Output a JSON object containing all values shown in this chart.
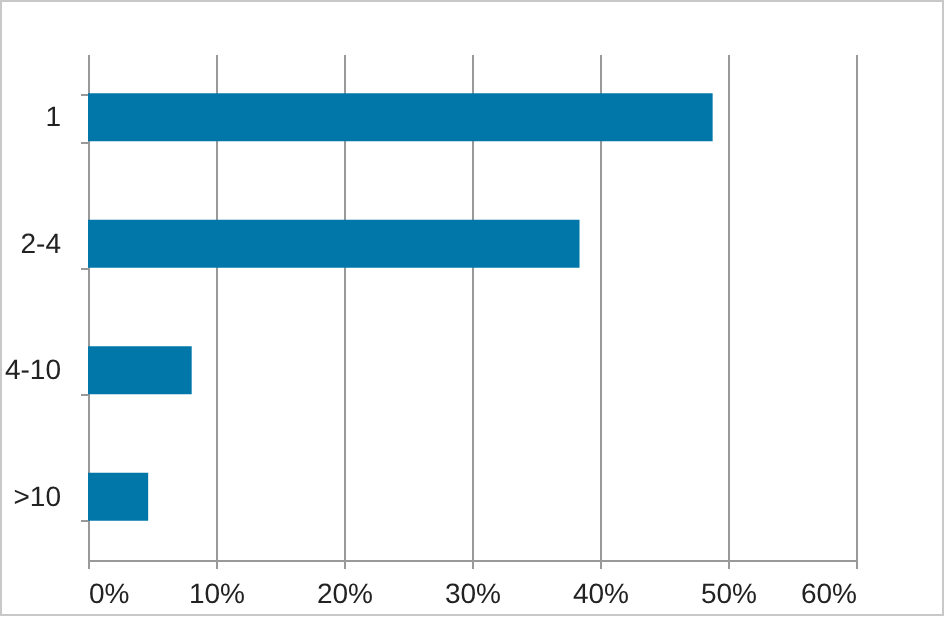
{
  "chart_data": {
    "type": "bar",
    "orientation": "horizontal",
    "categories": [
      "1",
      "2-4",
      "4-10",
      ">10"
    ],
    "values": [
      48.8,
      38.4,
      8.1,
      4.7
    ],
    "color": "#0077a8",
    "xlim": [
      0,
      60
    ],
    "xticks": [
      {
        "value": 0,
        "label": "0%"
      },
      {
        "value": 10,
        "label": "10%"
      },
      {
        "value": 20,
        "label": "20%"
      },
      {
        "value": 30,
        "label": "30%"
      },
      {
        "value": 40,
        "label": "40%"
      },
      {
        "value": 50,
        "label": "50%"
      },
      {
        "value": 60,
        "label": "60%"
      }
    ],
    "grid": "x"
  }
}
